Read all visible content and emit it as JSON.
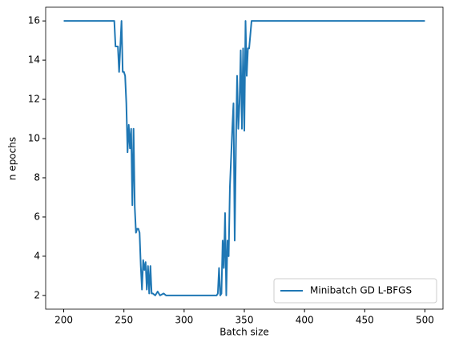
{
  "chart_data": {
    "type": "line",
    "xlabel": "Batch size",
    "ylabel": "n epochs",
    "x": [
      200,
      242,
      243,
      245,
      246,
      247,
      248,
      249,
      250,
      251,
      252,
      253,
      254,
      255,
      256,
      257,
      258,
      259,
      260,
      261,
      262,
      263,
      264,
      265,
      266,
      267,
      268,
      269,
      270,
      271,
      272,
      273,
      274,
      276,
      278,
      280,
      283,
      285,
      327,
      328,
      329,
      330,
      331,
      332,
      333,
      334,
      335,
      336,
      337,
      338,
      340,
      341,
      342,
      343,
      344,
      345,
      346,
      347,
      348,
      349,
      350,
      351,
      352,
      353,
      354,
      356,
      500
    ],
    "series": [
      {
        "name": "Minibatch GD L-BFGS",
        "color": "#1f77b4",
        "values": [
          16,
          16,
          14.7,
          14.7,
          13.4,
          14.7,
          16,
          13.4,
          13.4,
          13.2,
          11.8,
          9.3,
          10.7,
          9.5,
          10.5,
          6.6,
          10.5,
          6.5,
          5.2,
          5.4,
          5.4,
          5.2,
          3.5,
          2.3,
          3.8,
          3.3,
          3.7,
          2.3,
          3.5,
          2.1,
          3.5,
          2.1,
          2.1,
          2.0,
          2.2,
          2.0,
          2.1,
          2.0,
          2.0,
          2.1,
          3.4,
          2.0,
          2.1,
          4.8,
          3.4,
          6.2,
          2.0,
          4.8,
          4.0,
          7.5,
          10.5,
          11.8,
          4.8,
          9.5,
          13.2,
          10.5,
          11.8,
          14.5,
          10.5,
          14.6,
          10.4,
          16,
          13.2,
          14.6,
          14.6,
          16,
          16
        ]
      }
    ],
    "xlim": [
      185,
      515
    ],
    "xticks": [
      200,
      250,
      300,
      350,
      400,
      450,
      500
    ],
    "ylim": [
      1.3,
      16.7
    ],
    "yticks": [
      2,
      4,
      6,
      8,
      10,
      12,
      14,
      16
    ],
    "grid": false,
    "legend": "lower right"
  }
}
